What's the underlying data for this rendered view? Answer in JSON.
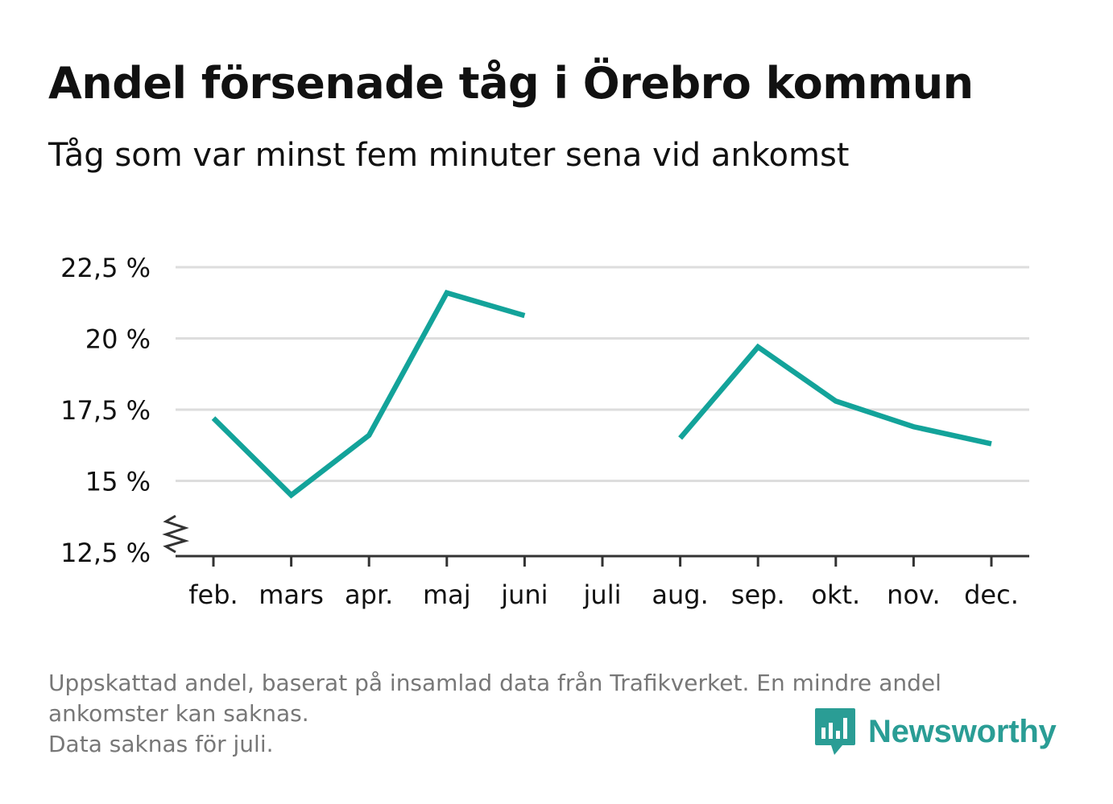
{
  "title": "Andel försenade tåg i Örebro kommun",
  "subtitle": "Tåg som var minst fem minuter sena vid ankomst",
  "footnote": {
    "line1": "Uppskattad andel, baserat på insamlad data från Trafikverket. En mindre andel",
    "line2": "ankomster kan saknas.",
    "line3": "Data saknas för juli."
  },
  "brand": {
    "name": "Newsworthy",
    "icon": "newsworthy-bar-chart-bubble-icon",
    "color": "#2a9d95"
  },
  "colors": {
    "line": "#13a39a",
    "grid": "#dddddd",
    "axis": "#333333",
    "text": "#111111",
    "muted": "#777777"
  },
  "chart_data": {
    "type": "line",
    "categories": [
      "feb.",
      "mars",
      "apr.",
      "maj",
      "juni",
      "juli",
      "aug.",
      "sep.",
      "okt.",
      "nov.",
      "dec."
    ],
    "series": [
      {
        "values": [
          17.2,
          14.5,
          16.6,
          21.6,
          20.8,
          null,
          16.5,
          19.7,
          17.8,
          16.9,
          16.3
        ]
      }
    ],
    "yticks": [
      12.5,
      15,
      17.5,
      20,
      22.5
    ],
    "ytick_labels": [
      "12,5 %",
      "15 %",
      "17,5 %",
      "20 %",
      "22,5 %"
    ],
    "ylim": [
      12.5,
      22.5
    ],
    "axis_break": true,
    "grid": true,
    "legend": "none",
    "xlabel": "",
    "ylabel": ""
  }
}
